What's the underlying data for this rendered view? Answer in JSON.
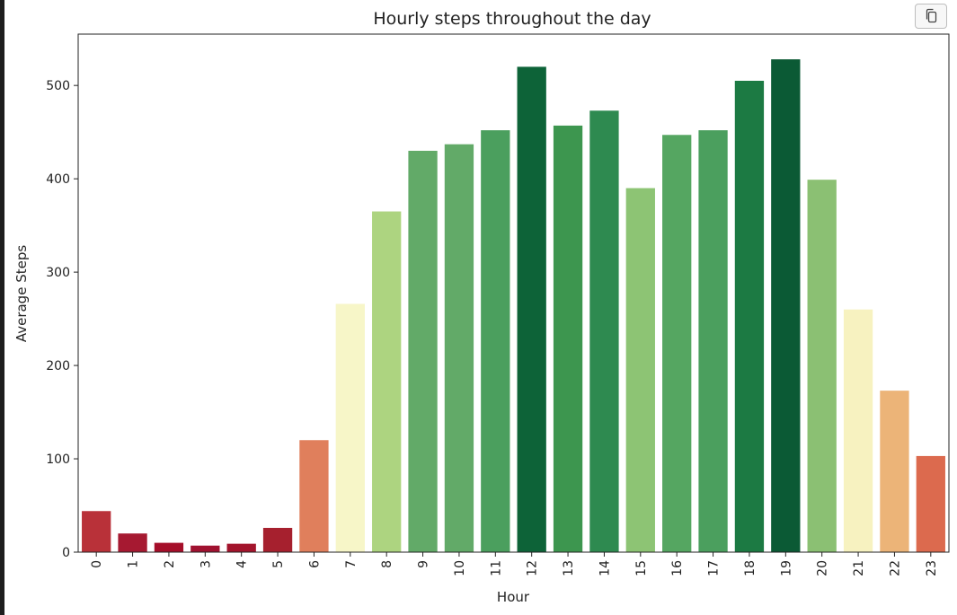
{
  "toolbar": {
    "copy_icon": "copy-icon"
  },
  "chart_data": {
    "type": "bar",
    "title": "Hourly steps throughout the day",
    "xlabel": "Hour",
    "ylabel": "Average Steps",
    "ylim": [
      0,
      555
    ],
    "yticks": [
      0,
      100,
      200,
      300,
      400,
      500
    ],
    "grid": false,
    "legend": "none",
    "categories": [
      "0",
      "1",
      "2",
      "3",
      "4",
      "5",
      "6",
      "7",
      "8",
      "9",
      "10",
      "11",
      "12",
      "13",
      "14",
      "15",
      "16",
      "17",
      "18",
      "19",
      "20",
      "21",
      "22",
      "23"
    ],
    "values": [
      44,
      20,
      10,
      7,
      9,
      26,
      120,
      266,
      365,
      430,
      437,
      452,
      520,
      457,
      473,
      390,
      447,
      452,
      505,
      528,
      399,
      260,
      173,
      103
    ],
    "colors": [
      "#b93139",
      "#a61931",
      "#a50e29",
      "#a01230",
      "#a3142c",
      "#a6202e",
      "#e07f5c",
      "#f7f6c8",
      "#add480",
      "#62aa68",
      "#62aa68",
      "#4b9f5e",
      "#0d6338",
      "#3d964f",
      "#2e8a50",
      "#8dc474",
      "#55a661",
      "#4b9f5e",
      "#1c7a43",
      "#0b5a35",
      "#8bc073",
      "#f7f2c0",
      "#ecb478",
      "#dc6a4e"
    ]
  }
}
